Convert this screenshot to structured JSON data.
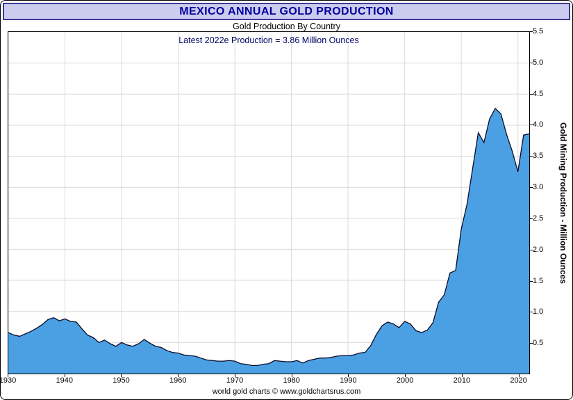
{
  "chart_data": {
    "type": "area",
    "title": "MEXICO ANNUAL GOLD PRODUCTION",
    "subtitle": "Gold Production By Country",
    "annotation": "Latest 2022e Production = 3.86 Million Ounces",
    "ylabel": "Gold Mining Production - Million Ounces",
    "footer": "world gold charts © www.goldchartsrus.com",
    "xlim": [
      1930,
      2022
    ],
    "ylim": [
      0,
      5.5
    ],
    "x_ticks": [
      1930,
      1940,
      1950,
      1960,
      1970,
      1980,
      1990,
      2000,
      2010,
      2020
    ],
    "y_ticks": [
      0.5,
      1.0,
      1.5,
      2.0,
      2.5,
      3.0,
      3.5,
      4.0,
      4.5,
      5.0,
      5.5
    ],
    "grid": true,
    "grid_color": "#d9d9d9",
    "fill_color": "#4aa0e2",
    "line_color": "#0a0a28",
    "title_color": "#0000a0",
    "title_bg": "#ccccee",
    "years": [
      1930,
      1931,
      1932,
      1933,
      1934,
      1935,
      1936,
      1937,
      1938,
      1939,
      1940,
      1941,
      1942,
      1943,
      1944,
      1945,
      1946,
      1947,
      1948,
      1949,
      1950,
      1951,
      1952,
      1953,
      1954,
      1955,
      1956,
      1957,
      1958,
      1959,
      1960,
      1961,
      1962,
      1963,
      1964,
      1965,
      1966,
      1967,
      1968,
      1969,
      1970,
      1971,
      1972,
      1973,
      1974,
      1975,
      1976,
      1977,
      1978,
      1979,
      1980,
      1981,
      1982,
      1983,
      1984,
      1985,
      1986,
      1987,
      1988,
      1989,
      1990,
      1991,
      1992,
      1993,
      1994,
      1995,
      1996,
      1997,
      1998,
      1999,
      2000,
      2001,
      2002,
      2003,
      2004,
      2005,
      2006,
      2007,
      2008,
      2009,
      2010,
      2011,
      2012,
      2013,
      2014,
      2015,
      2016,
      2017,
      2018,
      2019,
      2020,
      2021,
      2022
    ],
    "values": [
      0.66,
      0.62,
      0.6,
      0.64,
      0.68,
      0.73,
      0.79,
      0.87,
      0.9,
      0.85,
      0.88,
      0.84,
      0.83,
      0.72,
      0.62,
      0.58,
      0.5,
      0.54,
      0.48,
      0.44,
      0.5,
      0.46,
      0.44,
      0.48,
      0.55,
      0.49,
      0.44,
      0.42,
      0.37,
      0.34,
      0.33,
      0.3,
      0.29,
      0.28,
      0.25,
      0.22,
      0.21,
      0.2,
      0.2,
      0.21,
      0.2,
      0.16,
      0.15,
      0.13,
      0.13,
      0.15,
      0.16,
      0.21,
      0.2,
      0.19,
      0.19,
      0.21,
      0.17,
      0.21,
      0.23,
      0.25,
      0.25,
      0.26,
      0.28,
      0.29,
      0.29,
      0.3,
      0.33,
      0.34,
      0.45,
      0.63,
      0.77,
      0.83,
      0.8,
      0.74,
      0.84,
      0.8,
      0.69,
      0.66,
      0.7,
      0.82,
      1.15,
      1.27,
      1.62,
      1.66,
      2.33,
      2.72,
      3.3,
      3.88,
      3.72,
      4.1,
      4.27,
      4.18,
      3.85,
      3.58,
      3.25,
      3.84,
      3.86
    ]
  }
}
